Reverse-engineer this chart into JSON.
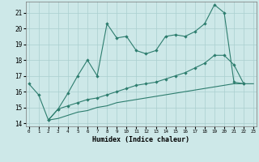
{
  "xlabel": "Humidex (Indice chaleur)",
  "x_all": [
    0,
    1,
    2,
    3,
    4,
    5,
    6,
    7,
    8,
    9,
    10,
    11,
    12,
    13,
    14,
    15,
    16,
    17,
    18,
    19,
    20,
    21,
    22,
    23
  ],
  "line1_x": [
    0,
    1,
    2,
    3,
    4,
    5,
    6,
    7,
    8,
    9,
    10,
    11,
    12,
    13,
    14,
    15,
    16,
    17,
    18,
    19,
    20,
    21,
    22
  ],
  "line1_y": [
    16.5,
    15.8,
    14.2,
    14.9,
    15.9,
    17.0,
    18.0,
    17.0,
    20.3,
    19.4,
    19.5,
    18.6,
    18.4,
    18.6,
    19.5,
    19.6,
    19.5,
    19.8,
    20.3,
    21.5,
    21.0,
    16.6,
    16.5
  ],
  "line2_x": [
    2,
    3,
    4,
    5,
    6,
    7,
    8,
    9,
    10,
    11,
    12,
    13,
    14,
    15,
    16,
    17,
    18,
    19,
    20,
    21,
    22
  ],
  "line2_y": [
    14.2,
    14.9,
    15.1,
    15.3,
    15.5,
    15.6,
    15.8,
    16.0,
    16.2,
    16.4,
    16.5,
    16.6,
    16.8,
    17.0,
    17.2,
    17.5,
    17.8,
    18.3,
    18.3,
    17.7,
    16.5
  ],
  "line3_x": [
    2,
    3,
    4,
    5,
    6,
    7,
    8,
    9,
    10,
    11,
    12,
    13,
    14,
    15,
    16,
    17,
    18,
    19,
    20,
    21,
    22,
    23
  ],
  "line3_y": [
    14.2,
    14.3,
    14.5,
    14.7,
    14.8,
    15.0,
    15.1,
    15.3,
    15.4,
    15.5,
    15.6,
    15.7,
    15.8,
    15.9,
    16.0,
    16.1,
    16.2,
    16.3,
    16.4,
    16.5,
    16.5,
    16.5
  ],
  "color": "#2d7d6e",
  "bg_color": "#cde8e8",
  "grid_color": "#aacfcf",
  "ylim": [
    13.8,
    21.7
  ],
  "yticks": [
    14,
    15,
    16,
    17,
    18,
    19,
    20,
    21
  ],
  "xlim": [
    -0.3,
    23.3
  ]
}
